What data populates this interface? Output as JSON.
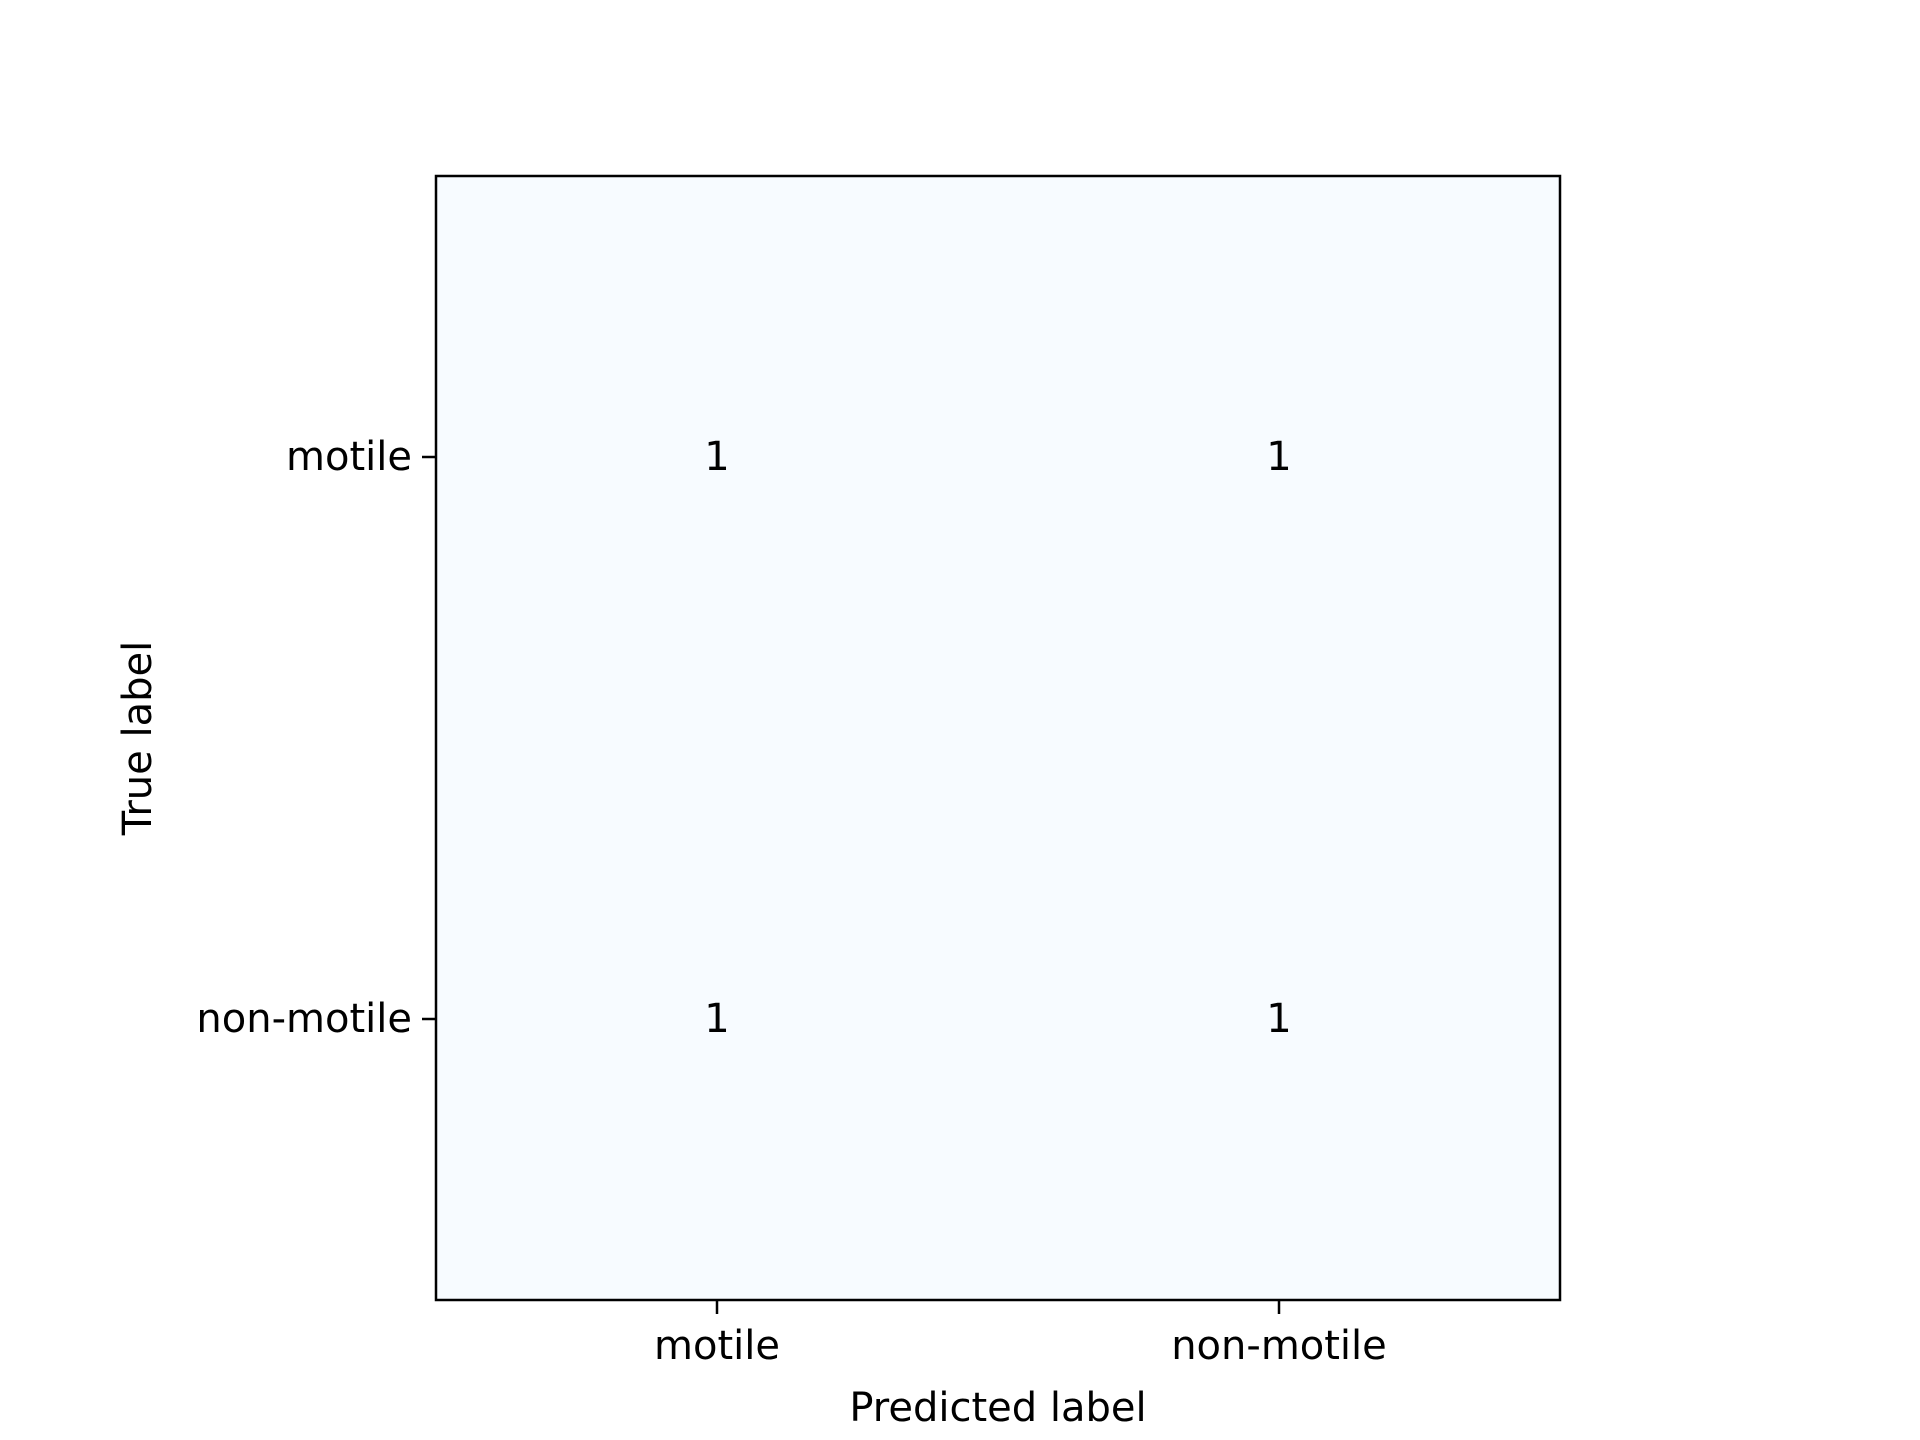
{
  "chart_data": {
    "type": "heatmap",
    "title": "",
    "xlabel": "Predicted label",
    "ylabel": "True label",
    "x_categories": [
      "motile",
      "non-motile"
    ],
    "y_categories": [
      "motile",
      "non-motile"
    ],
    "values": [
      [
        1,
        1
      ],
      [
        1,
        1
      ]
    ],
    "cell_labels": [
      [
        "1",
        "1"
      ],
      [
        "1",
        "1"
      ]
    ],
    "colormap": "Blues",
    "cell_color": "#f7fbff",
    "grid": false,
    "legend": "none"
  }
}
